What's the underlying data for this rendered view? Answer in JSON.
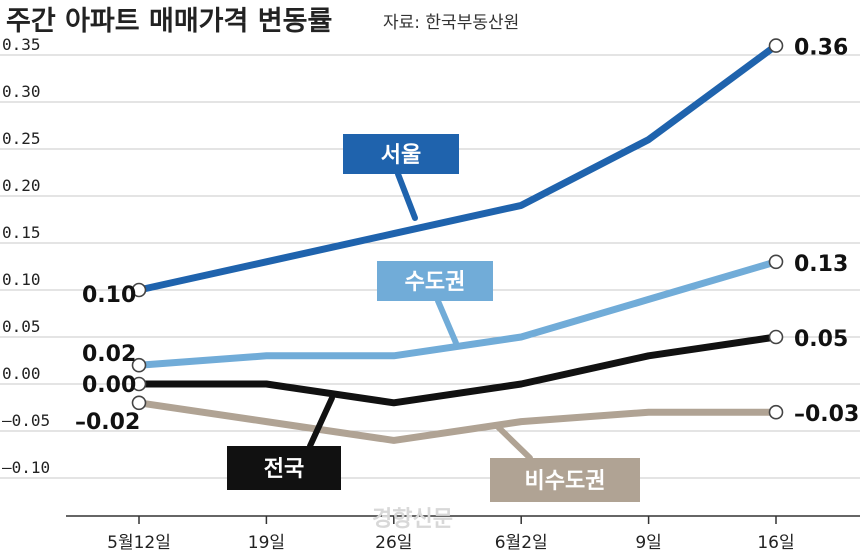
{
  "header": {
    "title": "주간 아파트 매매가격 변동률",
    "source": "자료: 한국부동산원"
  },
  "watermark": "경향신문",
  "chart_data": {
    "type": "line",
    "title": "주간 아파트 매매가격 변동률",
    "xlabel": "",
    "ylabel": "",
    "categories": [
      "5월12일",
      "19일",
      "26일",
      "6월2일",
      "9일",
      "16일"
    ],
    "ylim": [
      -0.1,
      0.35
    ],
    "yticks": [
      0.35,
      0.3,
      0.25,
      0.2,
      0.15,
      0.1,
      0.05,
      0.0,
      -0.05,
      -0.1
    ],
    "ytick_labels": [
      "0.35",
      "0.30",
      "0.25",
      "0.20",
      "0.15",
      "0.10",
      "0.05",
      "0.00",
      "–0.05",
      "–0.10"
    ],
    "grid": true,
    "series": [
      {
        "name": "서울",
        "color": "#1f63ad",
        "values": [
          0.1,
          0.13,
          0.16,
          0.19,
          0.26,
          0.36
        ],
        "start_label": "0.10",
        "end_label": "0.36"
      },
      {
        "name": "수도권",
        "color": "#71acd8",
        "values": [
          0.02,
          0.03,
          0.03,
          0.05,
          0.09,
          0.13
        ],
        "start_label": "0.02",
        "end_label": "0.13"
      },
      {
        "name": "전국",
        "color": "#111111",
        "values": [
          0.0,
          0.0,
          -0.02,
          0.0,
          0.03,
          0.05
        ],
        "start_label": "0.00",
        "end_label": "0.05"
      },
      {
        "name": "비수도권",
        "color": "#b0a394",
        "values": [
          -0.02,
          -0.04,
          -0.06,
          -0.04,
          -0.03,
          -0.03
        ],
        "start_label": "–0.02",
        "end_label": "–0.03"
      }
    ]
  }
}
